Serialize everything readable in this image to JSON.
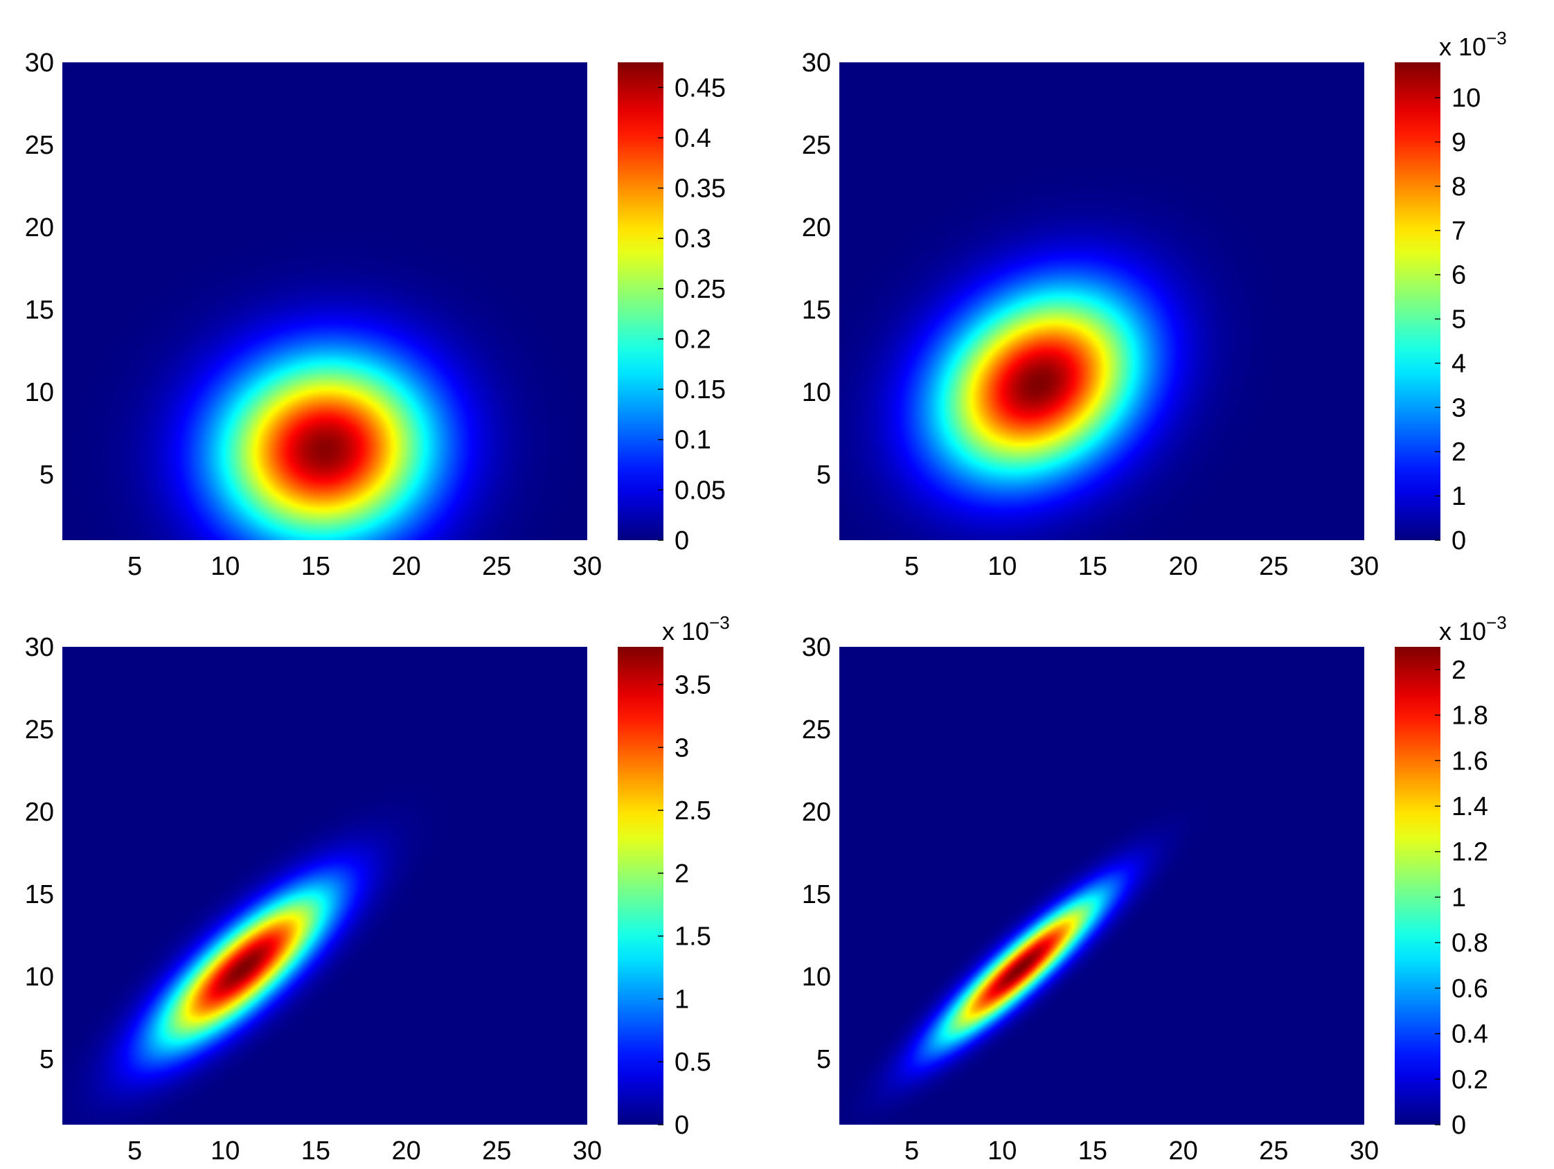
{
  "chart_data": [
    {
      "type": "heatmap",
      "title": "",
      "xlabel": "",
      "ylabel": "",
      "xlim": [
        1,
        30
      ],
      "ylim": [
        1,
        30
      ],
      "xticks": [
        "5",
        "10",
        "15",
        "20",
        "25",
        "30"
      ],
      "yticks": [
        "5",
        "10",
        "15",
        "20",
        "25",
        "30"
      ],
      "colormap": "jet",
      "background_color": "#00008f",
      "colorbar": {
        "range": [
          0,
          0.475
        ],
        "ticks": [
          "0",
          "0.05",
          "0.1",
          "0.15",
          "0.2",
          "0.25",
          "0.3",
          "0.35",
          "0.4",
          "0.45"
        ],
        "tick_values": [
          0,
          0.05,
          0.1,
          0.15,
          0.2,
          0.25,
          0.3,
          0.35,
          0.4,
          0.45
        ],
        "multiplier": ""
      },
      "peak": {
        "x": 15.5,
        "y": 6.5,
        "value": 0.47
      },
      "spread": {
        "sx": 4.0,
        "sy": 3.8,
        "rho": 0.05
      }
    },
    {
      "type": "heatmap",
      "title": "",
      "xlabel": "",
      "ylabel": "",
      "xlim": [
        1,
        30
      ],
      "ylim": [
        1,
        30
      ],
      "xticks": [
        "5",
        "10",
        "15",
        "20",
        "25",
        "30"
      ],
      "yticks": [
        "5",
        "10",
        "15",
        "20",
        "25",
        "30"
      ],
      "colormap": "jet",
      "background_color": "#00008f",
      "colorbar": {
        "range": [
          0,
          10.8
        ],
        "ticks": [
          "0",
          "1",
          "2",
          "3",
          "4",
          "5",
          "6",
          "7",
          "8",
          "9",
          "10"
        ],
        "tick_values": [
          0,
          1,
          2,
          3,
          4,
          5,
          6,
          7,
          8,
          9,
          10
        ],
        "multiplier": "x 10",
        "exponent": "−3"
      },
      "peak": {
        "x": 12,
        "y": 10.5,
        "value": 10.8
      },
      "spread": {
        "sx": 3.8,
        "sy": 3.8,
        "rho": 0.25
      }
    },
    {
      "type": "heatmap",
      "title": "",
      "xlabel": "",
      "ylabel": "",
      "xlim": [
        1,
        30
      ],
      "ylim": [
        1,
        30
      ],
      "xticks": [
        "5",
        "10",
        "15",
        "20",
        "25",
        "30"
      ],
      "yticks": [
        "5",
        "10",
        "15",
        "20",
        "25",
        "30"
      ],
      "colormap": "jet",
      "background_color": "#00008f",
      "colorbar": {
        "range": [
          0,
          3.8
        ],
        "ticks": [
          "0",
          "0.5",
          "1",
          "1.5",
          "2",
          "2.5",
          "3",
          "3.5"
        ],
        "tick_values": [
          0,
          0.5,
          1,
          1.5,
          2,
          2.5,
          3,
          3.5
        ],
        "multiplier": "x 10",
        "exponent": "−3"
      },
      "peak": {
        "x": 11,
        "y": 10.5,
        "value": 3.8
      },
      "spread": {
        "sx": 3.2,
        "sy": 3.2,
        "rho": 0.82
      }
    },
    {
      "type": "heatmap",
      "title": "",
      "xlabel": "",
      "ylabel": "",
      "xlim": [
        1,
        30
      ],
      "ylim": [
        1,
        30
      ],
      "xticks": [
        "5",
        "10",
        "15",
        "20",
        "25",
        "30"
      ],
      "yticks": [
        "5",
        "10",
        "15",
        "20",
        "25",
        "30"
      ],
      "colormap": "jet",
      "background_color": "#00008f",
      "colorbar": {
        "range": [
          0,
          2.1
        ],
        "ticks": [
          "0",
          "0.2",
          "0.4",
          "0.6",
          "0.8",
          "1",
          "1.2",
          "1.4",
          "1.6",
          "1.8",
          "2"
        ],
        "tick_values": [
          0,
          0.2,
          0.4,
          0.6,
          0.8,
          1,
          1.2,
          1.4,
          1.6,
          1.8,
          2
        ],
        "multiplier": "x 10",
        "exponent": "−3"
      },
      "peak": {
        "x": 11,
        "y": 10.5,
        "value": 2.1
      },
      "spread": {
        "sx": 3.0,
        "sy": 3.0,
        "rho": 0.92
      }
    }
  ]
}
